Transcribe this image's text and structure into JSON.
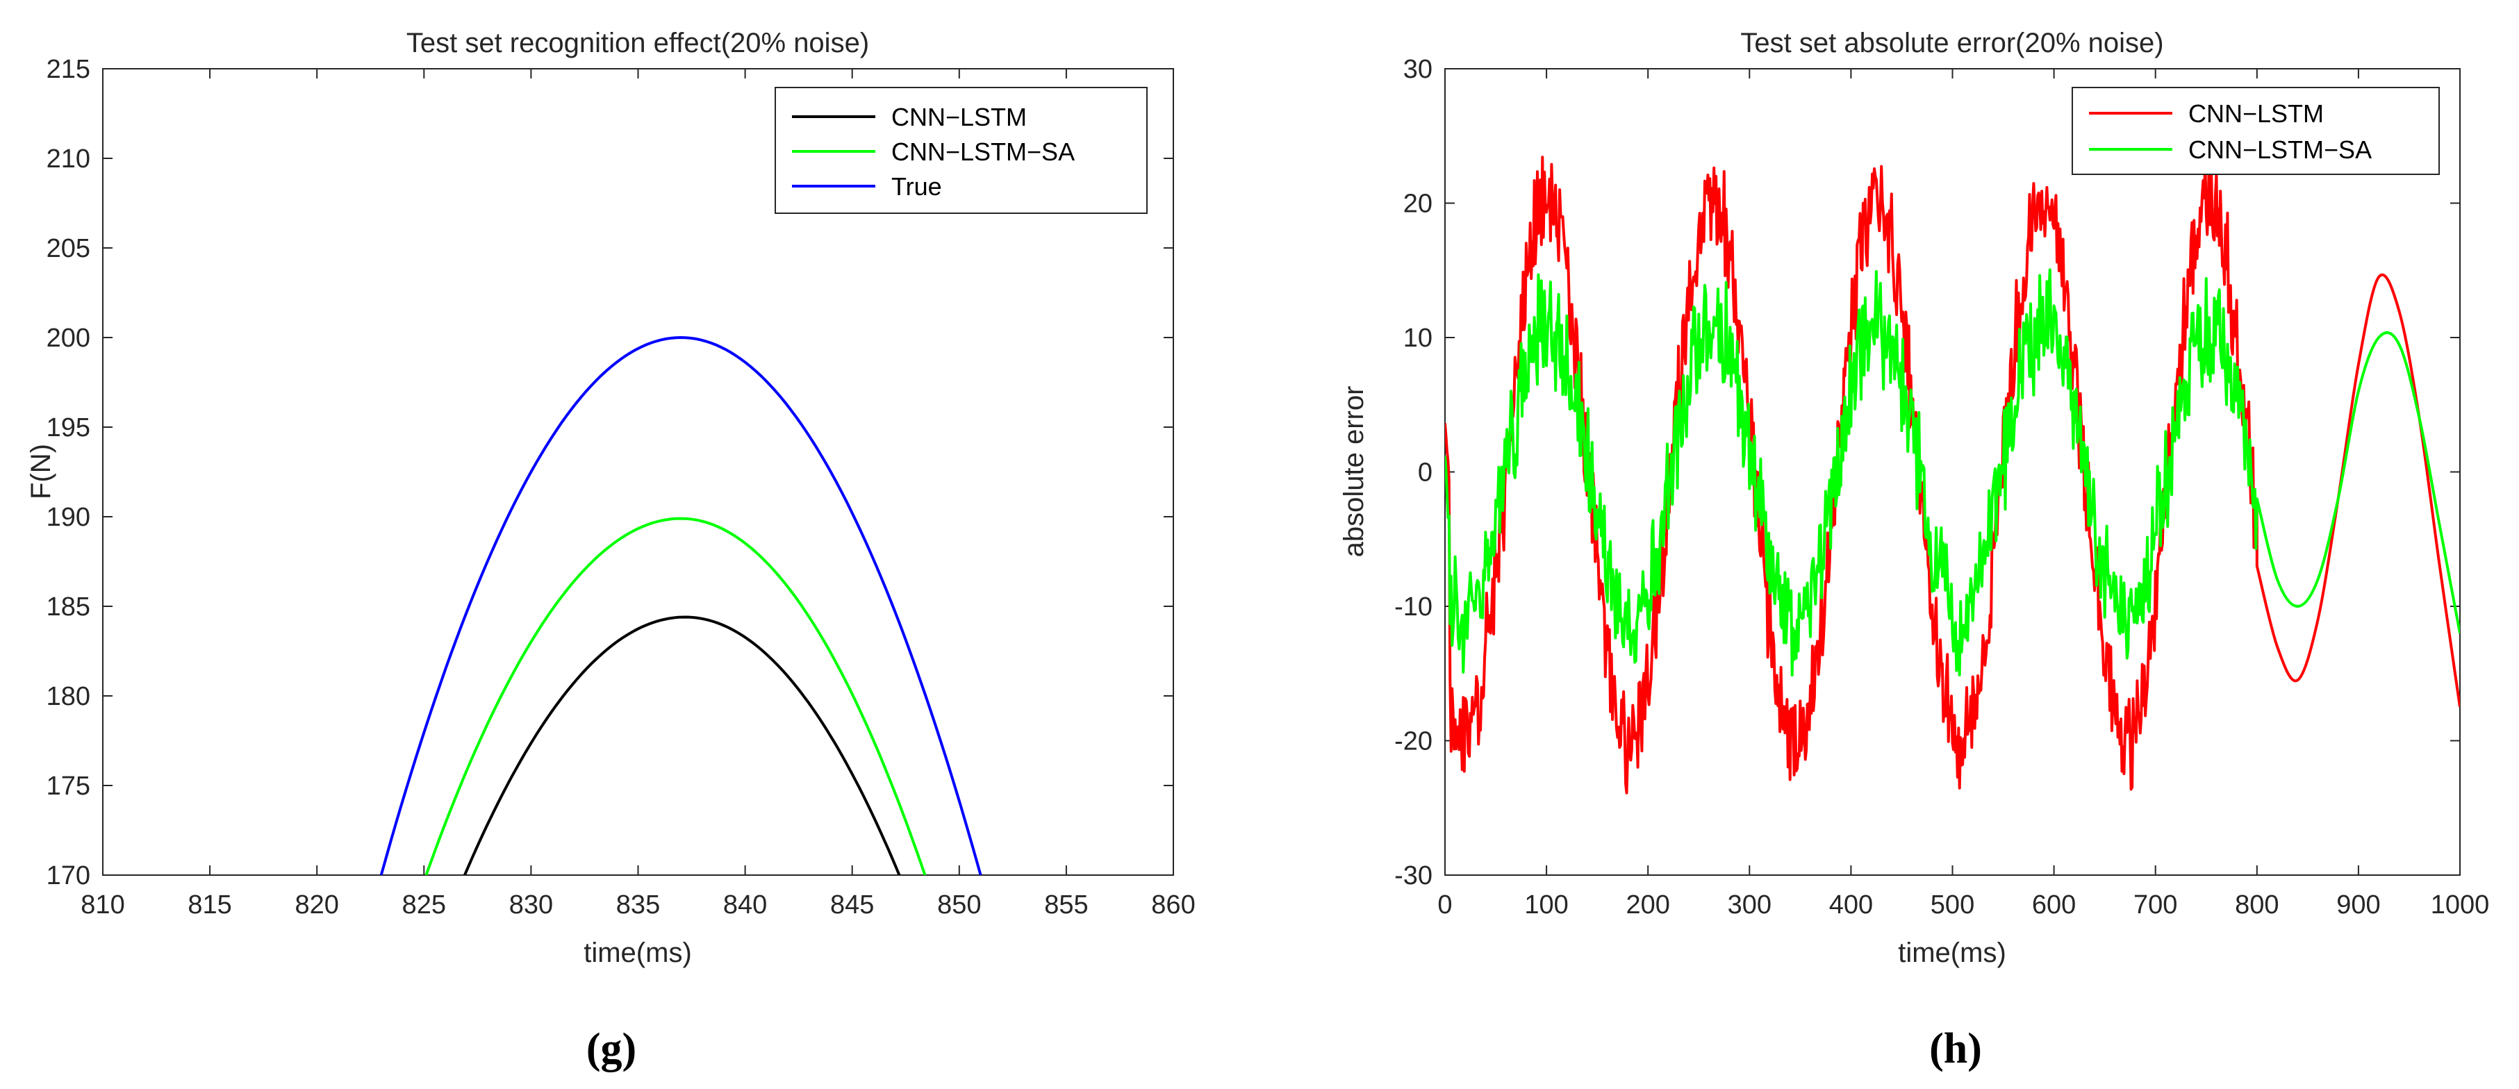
{
  "chart_data": [
    {
      "type": "line",
      "id": "g",
      "title": "Test set recognition effect(20% noise)",
      "xlabel": "time(ms)",
      "ylabel": "F(N)",
      "xlim": [
        810,
        860
      ],
      "ylim": [
        170,
        215
      ],
      "xticks": [
        810,
        815,
        820,
        825,
        830,
        835,
        840,
        845,
        850,
        855,
        860
      ],
      "yticks": [
        170,
        175,
        180,
        185,
        190,
        195,
        200,
        205,
        210,
        215
      ],
      "legend_position": "top-right",
      "sublabel": "(g)",
      "series": [
        {
          "name": "CNN−LSTM",
          "color": "#000000",
          "peak_x": 837.2,
          "peak_y": 184.4,
          "x": [
            826.9,
            828,
            830,
            832,
            834,
            836,
            837.2,
            838,
            840,
            842,
            844,
            846,
            847.2
          ],
          "y": [
            170,
            172.4,
            176.6,
            180.1,
            182.8,
            184.1,
            184.4,
            184.3,
            183.5,
            181.6,
            178.5,
            173.8,
            170
          ]
        },
        {
          "name": "CNN−LSTM−SA",
          "color": "#00ff00",
          "peak_x": 837.0,
          "peak_y": 189.9,
          "x": [
            825.1,
            826,
            828,
            830,
            832,
            834,
            836,
            837,
            838,
            840,
            842,
            844,
            846,
            848.4
          ],
          "y": [
            170,
            172.4,
            177.3,
            181.4,
            185.0,
            187.8,
            189.5,
            189.9,
            189.8,
            188.8,
            186.7,
            183.4,
            179.0,
            170
          ]
        },
        {
          "name": "True",
          "color": "#0000ff",
          "peak_x": 837.0,
          "peak_y": 200.0,
          "x": [
            823.0,
            824,
            826,
            828,
            830,
            832,
            834,
            836,
            837,
            838,
            840,
            842,
            844,
            846,
            848,
            850,
            851.0
          ],
          "y": [
            170,
            173.2,
            179.0,
            184.4,
            189.4,
            193.6,
            196.9,
            199.3,
            200.0,
            199.8,
            198.5,
            195.8,
            191.7,
            186.4,
            180.5,
            173.8,
            170
          ]
        }
      ]
    },
    {
      "type": "line",
      "id": "h",
      "title": "Test set absolute error(20% noise)",
      "xlabel": "time(ms)",
      "ylabel": "absolute error",
      "xlim": [
        0,
        1000
      ],
      "ylim": [
        -30,
        30
      ],
      "xticks": [
        0,
        100,
        200,
        300,
        400,
        500,
        600,
        700,
        800,
        900,
        1000
      ],
      "yticks": [
        -30,
        -20,
        -10,
        0,
        10,
        20,
        30
      ],
      "legend_position": "top-right",
      "sublabel": "(h)",
      "series": [
        {
          "name": "CNN−LSTM",
          "color": "#ff0000",
          "noisy_until": 800,
          "period": 163,
          "phase_zero": 60,
          "amplitude": 20,
          "noise": 3.0,
          "smooth_x": [
            800,
            820,
            840,
            860,
            880,
            900,
            920,
            940,
            960,
            980,
            1000
          ],
          "smooth_y": [
            -7,
            -13,
            -15.5,
            -11,
            -2,
            8,
            14.5,
            12,
            4,
            -7,
            -17.5
          ]
        },
        {
          "name": "CNN−LSTM−SA",
          "color": "#00ff00",
          "noisy_until": 800,
          "period": 163,
          "phase_zero": 60,
          "amplitude": 11,
          "noise": 3.2,
          "smooth_x": [
            800,
            820,
            840,
            860,
            880,
            900,
            920,
            940,
            960,
            980,
            1000
          ],
          "smooth_y": [
            -2,
            -8,
            -10,
            -8,
            -2,
            6,
            10,
            9.5,
            4,
            -4,
            -12
          ]
        }
      ]
    }
  ]
}
